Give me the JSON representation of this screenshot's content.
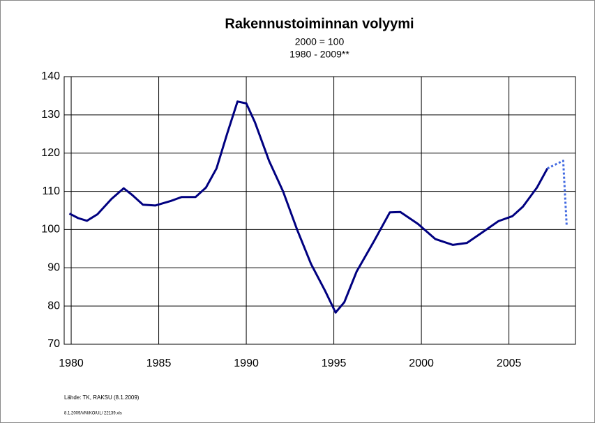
{
  "chart_data": {
    "type": "line",
    "title": "Rakennustoiminnan volyymi",
    "subtitle": "2000 = 100",
    "subtitle2": "1980 - 2009**",
    "series": [
      {
        "color": "#000080",
        "style": "solid",
        "x": [
          1979.9,
          1980.4,
          1980.9,
          1981.5,
          1982.3,
          1983.0,
          1983.5,
          1984.1,
          1984.8,
          1985.7,
          1986.3,
          1987.1,
          1987.7,
          1988.3,
          1988.9,
          1989.5,
          1990.0,
          1990.5,
          1991.3,
          1992.1,
          1992.9,
          1993.7,
          1994.5,
          1995.1,
          1995.6,
          1996.3,
          1997.3,
          1998.2,
          1998.8,
          1999.8,
          2000.8,
          2001.8,
          2002.6,
          2003.4,
          2004.4,
          2005.2,
          2005.8,
          2006.6,
          2007.2
        ],
        "values": [
          104.2,
          103,
          102.3,
          104,
          108,
          110.8,
          109,
          106.5,
          106.3,
          107.5,
          108.5,
          108.5,
          111,
          116,
          125,
          133.5,
          133,
          128,
          118,
          110,
          100,
          91,
          84,
          78.3,
          81,
          89,
          97,
          104.5,
          104.6,
          101.5,
          97.5,
          96,
          96.5,
          99,
          102.2,
          103.5,
          106,
          111,
          116
        ]
      },
      {
        "color": "#4169e1",
        "style": "dashed",
        "x": [
          2007.2,
          2008.1,
          2008.3
        ],
        "values": [
          116,
          118,
          101
        ]
      }
    ],
    "xlim": [
      1979.6,
      2008.8
    ],
    "xticks": [
      1980,
      1985,
      1990,
      1995,
      2000,
      2005
    ],
    "ylim": [
      70,
      140
    ],
    "yticks": [
      70,
      80,
      90,
      100,
      110,
      120,
      130,
      140
    ],
    "grid": true,
    "source": "Lähde: TK, RAKSU (8.1.2009)",
    "footer": "8.1.2009/VM/KO/UL/ 22139.xls"
  }
}
